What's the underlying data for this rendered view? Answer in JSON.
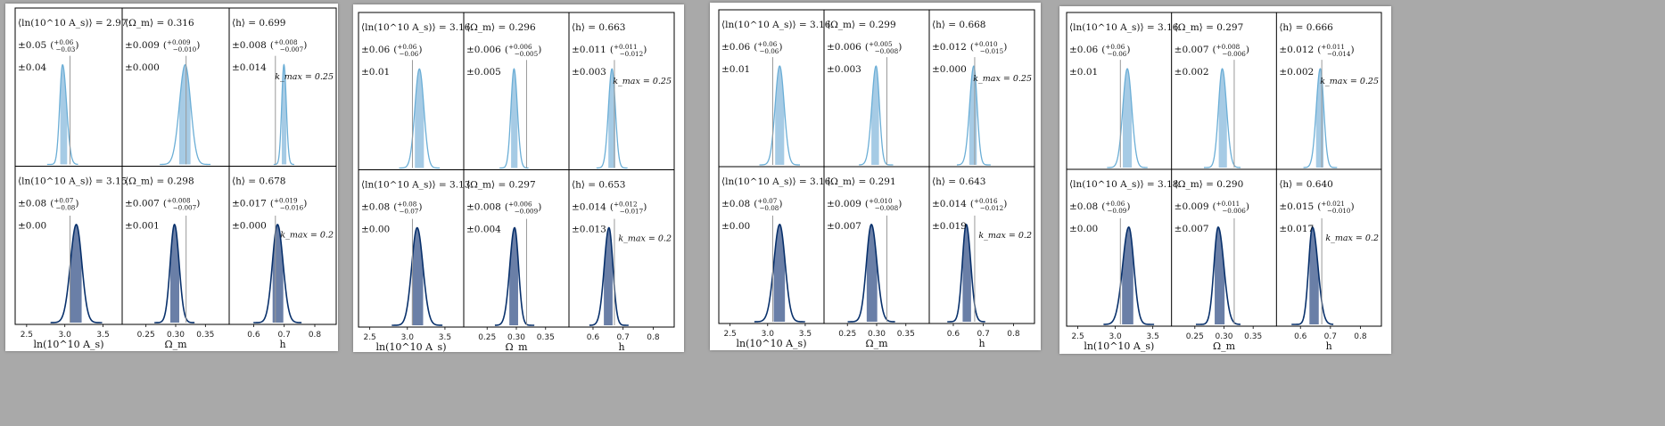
{
  "colors": {
    "light_line": "#6baed6",
    "light_fill": "#a6cbe5",
    "dark_line": "#08306b",
    "dark_fill": "#6a7fa7",
    "truth_line": "#999999"
  },
  "params": [
    {
      "key": "As",
      "label": "ln(10^10 A_s)",
      "ticks": [
        "2.5",
        "3.0",
        "3.5"
      ],
      "tick_values": [
        2.5,
        3.0,
        3.5
      ],
      "range": [
        2.35,
        3.75
      ],
      "truth": 3.0675
    },
    {
      "key": "Om",
      "label": "Ω_m",
      "ticks": [
        "0.25",
        "0.30",
        "0.35"
      ],
      "tick_values": [
        0.25,
        0.3,
        0.35
      ],
      "range": [
        0.21,
        0.39
      ],
      "truth": 0.3175
    },
    {
      "key": "h",
      "label": "h",
      "ticks": [
        "0.6",
        "0.7",
        "0.8"
      ],
      "tick_values": [
        0.6,
        0.7,
        0.8
      ],
      "range": [
        0.52,
        0.87
      ],
      "truth": 0.6711
    }
  ],
  "row_kmax": [
    "k_max = 0.25",
    "k_max = 0.2"
  ],
  "chart_data": [
    {
      "type": "density",
      "panels": [
        {
          "row": 0,
          "param": "As",
          "mean_text": "⟨ln(10^10 A_s)⟩ = 2.97",
          "mean": 2.97,
          "err_text": "±0.05",
          "err_up": "+0.06",
          "err_down": "−0.03",
          "sys_text": "±0.04"
        },
        {
          "row": 0,
          "param": "Om",
          "mean_text": "⟨Ω_m⟩ = 0.316",
          "mean": 0.316,
          "err_text": "±0.009",
          "err_up": "+0.009",
          "err_down": "−0.010",
          "sys_text": "±0.000"
        },
        {
          "row": 0,
          "param": "h",
          "mean_text": "⟨h⟩ = 0.699",
          "mean": 0.699,
          "err_text": "±0.008",
          "err_up": "+0.008",
          "err_down": "−0.007",
          "sys_text": "±0.014"
        },
        {
          "row": 1,
          "param": "As",
          "mean_text": "⟨ln(10^10 A_s)⟩ = 3.15",
          "mean": 3.15,
          "err_text": "±0.08",
          "err_up": "+0.07",
          "err_down": "−0.08",
          "sys_text": "±0.00"
        },
        {
          "row": 1,
          "param": "Om",
          "mean_text": "⟨Ω_m⟩ = 0.298",
          "mean": 0.298,
          "err_text": "±0.007",
          "err_up": "+0.008",
          "err_down": "−0.007",
          "sys_text": "±0.001"
        },
        {
          "row": 1,
          "param": "h",
          "mean_text": "⟨h⟩ = 0.678",
          "mean": 0.678,
          "err_text": "±0.017",
          "err_up": "+0.019",
          "err_down": "−0.016",
          "sys_text": "±0.000"
        }
      ]
    },
    {
      "type": "density",
      "panels": [
        {
          "row": 0,
          "param": "As",
          "mean_text": "⟨ln(10^10 A_s)⟩ = 3.16",
          "mean": 3.16,
          "err_text": "±0.06",
          "err_up": "+0.06",
          "err_down": "−0.06",
          "sys_text": "±0.01"
        },
        {
          "row": 0,
          "param": "Om",
          "mean_text": "⟨Ω_m⟩ = 0.296",
          "mean": 0.296,
          "err_text": "±0.006",
          "err_up": "+0.006",
          "err_down": "−0.005",
          "sys_text": "±0.005"
        },
        {
          "row": 0,
          "param": "h",
          "mean_text": "⟨h⟩ = 0.663",
          "mean": 0.663,
          "err_text": "±0.011",
          "err_up": "+0.011",
          "err_down": "−0.012",
          "sys_text": "±0.003"
        },
        {
          "row": 1,
          "param": "As",
          "mean_text": "⟨ln(10^10 A_s)⟩ = 3.13",
          "mean": 3.13,
          "err_text": "±0.08",
          "err_up": "+0.08",
          "err_down": "−0.07",
          "sys_text": "±0.00"
        },
        {
          "row": 1,
          "param": "Om",
          "mean_text": "⟨Ω_m⟩ = 0.297",
          "mean": 0.297,
          "err_text": "±0.008",
          "err_up": "+0.006",
          "err_down": "−0.009",
          "sys_text": "±0.004"
        },
        {
          "row": 1,
          "param": "h",
          "mean_text": "⟨h⟩ = 0.653",
          "mean": 0.653,
          "err_text": "±0.014",
          "err_up": "+0.012",
          "err_down": "−0.017",
          "sys_text": "±0.013"
        }
      ]
    },
    {
      "type": "density",
      "panels": [
        {
          "row": 0,
          "param": "As",
          "mean_text": "⟨ln(10^10 A_s)⟩ = 3.16",
          "mean": 3.16,
          "err_text": "±0.06",
          "err_up": "+0.06",
          "err_down": "−0.06",
          "sys_text": "±0.01"
        },
        {
          "row": 0,
          "param": "Om",
          "mean_text": "⟨Ω_m⟩ = 0.299",
          "mean": 0.299,
          "err_text": "±0.006",
          "err_up": "+0.005",
          "err_down": "−0.008",
          "sys_text": "±0.003"
        },
        {
          "row": 0,
          "param": "h",
          "mean_text": "⟨h⟩ = 0.668",
          "mean": 0.668,
          "err_text": "±0.012",
          "err_up": "+0.010",
          "err_down": "−0.015",
          "sys_text": "±0.000"
        },
        {
          "row": 1,
          "param": "As",
          "mean_text": "⟨ln(10^10 A_s)⟩ = 3.16",
          "mean": 3.16,
          "err_text": "±0.08",
          "err_up": "+0.07",
          "err_down": "−0.08",
          "sys_text": "±0.00"
        },
        {
          "row": 1,
          "param": "Om",
          "mean_text": "⟨Ω_m⟩ = 0.291",
          "mean": 0.291,
          "err_text": "±0.009",
          "err_up": "+0.010",
          "err_down": "−0.008",
          "sys_text": "±0.007"
        },
        {
          "row": 1,
          "param": "h",
          "mean_text": "⟨h⟩ = 0.643",
          "mean": 0.643,
          "err_text": "±0.014",
          "err_up": "+0.016",
          "err_down": "−0.012",
          "sys_text": "±0.019"
        }
      ]
    },
    {
      "type": "density",
      "panels": [
        {
          "row": 0,
          "param": "As",
          "mean_text": "⟨ln(10^10 A_s)⟩ = 3.16",
          "mean": 3.16,
          "err_text": "±0.06",
          "err_up": "+0.06",
          "err_down": "−0.06",
          "sys_text": "±0.01"
        },
        {
          "row": 0,
          "param": "Om",
          "mean_text": "⟨Ω_m⟩ = 0.297",
          "mean": 0.297,
          "err_text": "±0.007",
          "err_up": "+0.008",
          "err_down": "−0.006",
          "sys_text": "±0.002"
        },
        {
          "row": 0,
          "param": "h",
          "mean_text": "⟨h⟩ = 0.666",
          "mean": 0.666,
          "err_text": "±0.012",
          "err_up": "+0.011",
          "err_down": "−0.014",
          "sys_text": "±0.002"
        },
        {
          "row": 1,
          "param": "As",
          "mean_text": "⟨ln(10^10 A_s)⟩ = 3.18",
          "mean": 3.18,
          "err_text": "±0.08",
          "err_up": "+0.06",
          "err_down": "−0.09",
          "sys_text": "±0.00"
        },
        {
          "row": 1,
          "param": "Om",
          "mean_text": "⟨Ω_m⟩ = 0.290",
          "mean": 0.29,
          "err_text": "±0.009",
          "err_up": "+0.011",
          "err_down": "−0.006",
          "sys_text": "±0.007"
        },
        {
          "row": 1,
          "param": "h",
          "mean_text": "⟨h⟩ = 0.640",
          "mean": 0.64,
          "err_text": "±0.015",
          "err_up": "+0.021",
          "err_down": "−0.010",
          "sys_text": "±0.017"
        }
      ]
    }
  ]
}
